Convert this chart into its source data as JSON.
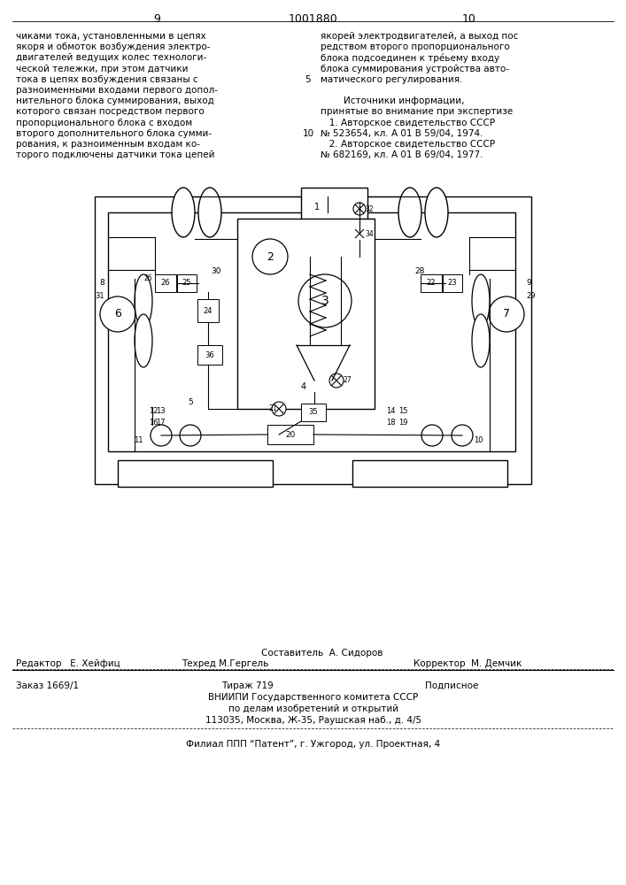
{
  "page_number_left": "9",
  "patent_number": "1001880",
  "page_number_right": "10",
  "background_color": "#ffffff",
  "text_color": "#000000",
  "left_column_text": [
    "чиками тока, установленными в цепях",
    "якоря и обмоток возбуждения электро-",
    "двигателей ведущих колес технологи-",
    "ческой тележки, при этом датчики",
    "тока в цепях возбуждения связаны с",
    "разноименными входами первого допол-",
    "нительного блока суммирования, выход",
    "которого связан посредством первого",
    "пропорционального блока с входом",
    "второго дополнительного блока сумми-",
    "рования, к разноименным входам ко-",
    "торого подключены датчики тока цепей"
  ],
  "right_column_text": [
    "якорей электродвигателей, а выход пос",
    "редством второго пропорционального",
    "блока подсоединен к тре́ьему входу",
    "блока суммирования устройства авто-",
    "матического регулирования.",
    "",
    "        Источники информации,",
    "принятые во внимание при экспертизе",
    "   1. Авторское свидетельство СССР",
    "№ 523654, кл. А 01 В 59/04, 1974.",
    "   2. Авторское свидетельство СССР",
    "№ 682169, кл. А 01 В 69/04, 1977."
  ],
  "footer_sestavitel": "Составитель  А. Сидоров",
  "footer_redaktor": "Редактор   Е. Хейфиц",
  "footer_tehred": "Техред М.Гергель",
  "footer_korrektor": "Корректор  М. Демчик",
  "footer_zakaz": "Заказ 1669/1",
  "footer_tirazh": "Тираж 719",
  "footer_podpisnoe": "Подписное",
  "footer_vniipи": "ВНИИПИ Государственного комитета СССР",
  "footer_dela": "по делам изобретений и открытий",
  "footer_addr": "113035, Москва, Ж-35, Раушская наб., д. 4/5",
  "footer_filial": "Филиал ППП “Патент”, г. Ужгород, ул. Проектная, 4"
}
